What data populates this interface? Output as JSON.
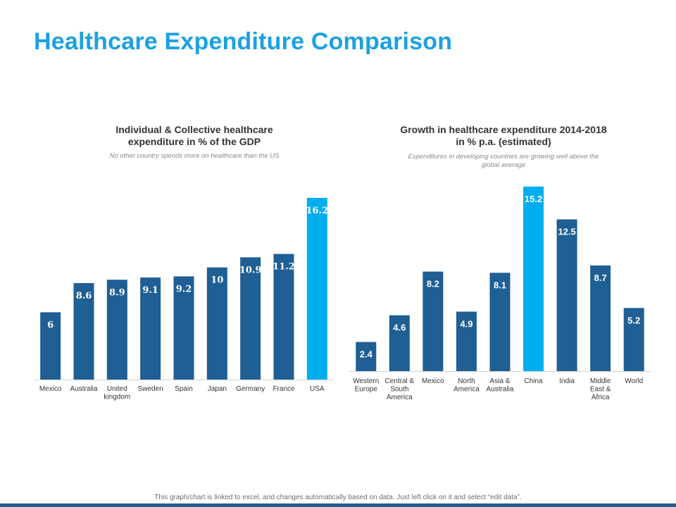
{
  "title": "Healthcare Expenditure Comparison",
  "footer": "This graph/chart is linked to excel, and changes automatically based on data. Just left click on it and select “edit data”.",
  "colors": {
    "primary": "#1f5f93",
    "highlight": "#00aeef",
    "title": "#1ba1e2"
  },
  "chart_data": [
    {
      "type": "bar",
      "title_line1": "Individual & Collective healthcare",
      "title_line2": "expenditure in % of the GDP",
      "subtitle": "No other country spends more on healthcare than the US",
      "categories": [
        "Mexico",
        "Australia",
        "United\nkingdom",
        "Sweden",
        "Spain",
        "Japan",
        "Germany",
        "France",
        "USA"
      ],
      "values": [
        6,
        8.6,
        8.9,
        9.1,
        9.2,
        10,
        10.9,
        11.2,
        16.2
      ],
      "labels": [
        "6",
        "8.6",
        "8.9",
        "9.1",
        "9.2",
        "10",
        "10.9",
        "11.2",
        "16.2"
      ],
      "highlight": [
        8
      ],
      "ylim": [
        0,
        16.2
      ],
      "xlabel": "",
      "ylabel": ""
    },
    {
      "type": "bar",
      "title_line1": "Growth in healthcare expenditure 2014-2018",
      "title_line2": "in % p.a. (estimated)",
      "subtitle_line1": "Expenditures in developing countries are growing well above the",
      "subtitle_line2": "global average",
      "categories": [
        "Western\nEurope",
        "Central &\nSouth\nAmerica",
        "Mexico",
        "North\nAmerica",
        "Asia &\nAustralia",
        "China",
        "India",
        "Middle\nEast &\nAfrica",
        "World"
      ],
      "values": [
        2.4,
        4.6,
        8.2,
        4.9,
        8.1,
        15.2,
        12.5,
        8.7,
        5.2
      ],
      "labels": [
        "2.4",
        "4.6",
        "8.2",
        "4.9",
        "8.1",
        "15.2",
        "12.5",
        "8.7",
        "5.2"
      ],
      "highlight": [
        5
      ],
      "ylim": [
        0,
        15.2
      ],
      "xlabel": "",
      "ylabel": ""
    }
  ]
}
